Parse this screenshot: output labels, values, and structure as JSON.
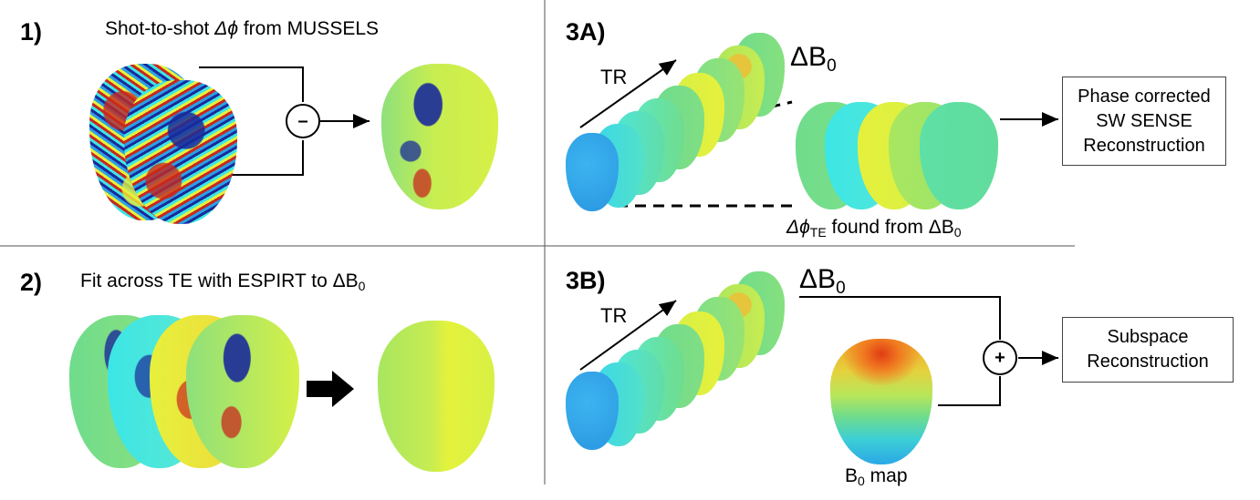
{
  "panel1": {
    "number": "1)",
    "caption_prefix": "Shot-to-shot ",
    "caption_symbol": "Δϕ",
    "caption_suffix": " from MUSSELS",
    "operator": "–"
  },
  "panel2": {
    "number": "2)",
    "caption": "Fit across TE with ESPIRT to ΔB",
    "caption_sub": "0"
  },
  "panel3a": {
    "number": "3A)",
    "tr_label": "TR",
    "db0_label": "ΔB",
    "db0_sub": "0",
    "dphi_symbol": "Δϕ",
    "dphi_sub": "TE",
    "dphi_text": " found from ΔB",
    "dphi_text_sub": "0",
    "recon_box": [
      "Phase corrected",
      "SW SENSE",
      "Reconstruction"
    ]
  },
  "panel3b": {
    "number": "3B)",
    "tr_label": "TR",
    "db0_label": "ΔB",
    "db0_sub": "0",
    "operator": "+",
    "b0_label": "B",
    "b0_sub": "0",
    "b0_suffix": " map",
    "recon_box": [
      "Subspace",
      "Reconstruction"
    ]
  },
  "colors": {
    "divider": "#555555",
    "phase_green": "#6fdc8c",
    "phase_yellow": "#e6f03c",
    "phase_cyan": "#3ce6e6",
    "phase_blue": "#2aa0e6",
    "noise_blue": "#1a2a9a",
    "noise_red": "#c8281e"
  }
}
